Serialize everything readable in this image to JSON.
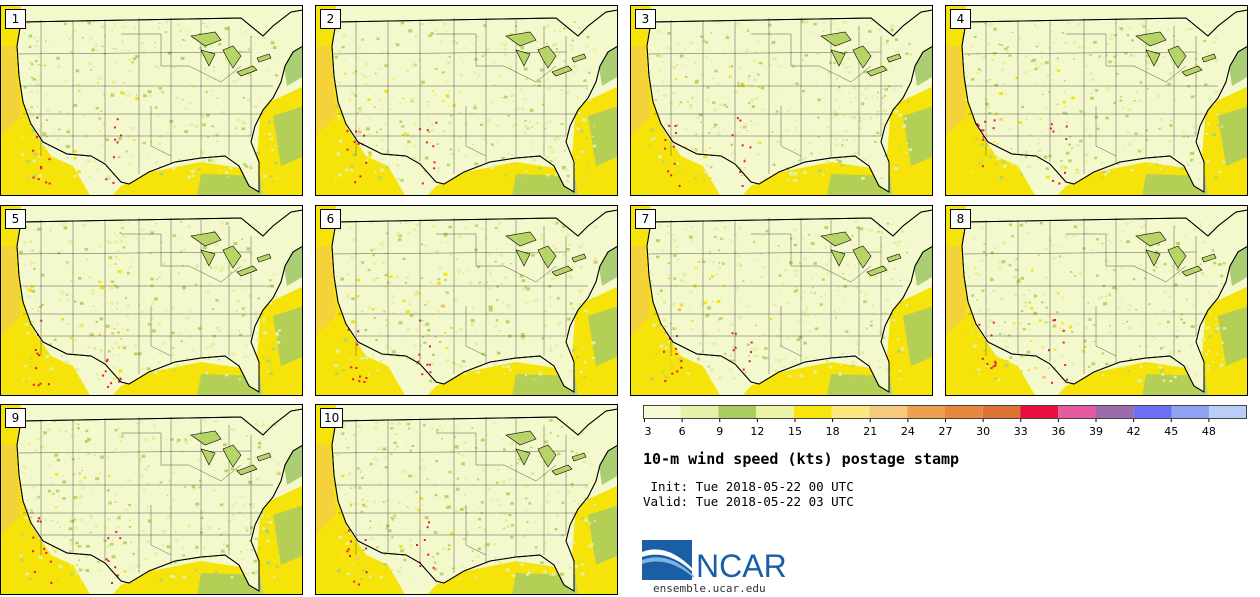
{
  "figure": {
    "title": "10-m wind speed (kts) postage stamp",
    "init_line": " Init: Tue 2018-05-22 00 UTC",
    "valid_line": "Valid: Tue 2018-05-22 03 UTC",
    "site": "ensemble.ucar.edu",
    "logo_text": "NCAR"
  },
  "members": [
    "1",
    "2",
    "3",
    "4",
    "5",
    "6",
    "7",
    "8",
    "9",
    "10"
  ],
  "colorbar": {
    "units": "kts",
    "ticks": [
      "3",
      "6",
      "9",
      "12",
      "15",
      "18",
      "21",
      "24",
      "27",
      "30",
      "33",
      "36",
      "39",
      "42",
      "45",
      "48"
    ],
    "colors": [
      "#f6f9d4",
      "#e3f2a8",
      "#a9cd5c",
      "#eaf3a6",
      "#f9e50e",
      "#fbe77f",
      "#f5cb7b",
      "#eda14f",
      "#e6883e",
      "#dd7235",
      "#ea0d42",
      "#e45ba2",
      "#9b6aaa",
      "#6c6ff4",
      "#8ea3f5",
      "#b9cdf7"
    ],
    "map_colors": {
      "background": "#f3f8cd",
      "light_green": "#e4f0a4",
      "green": "#b7d467",
      "yellow": "#f5e309",
      "orange": "#f2c46a",
      "red": "#e8193c",
      "ocean_green": "#a3c96a"
    }
  }
}
